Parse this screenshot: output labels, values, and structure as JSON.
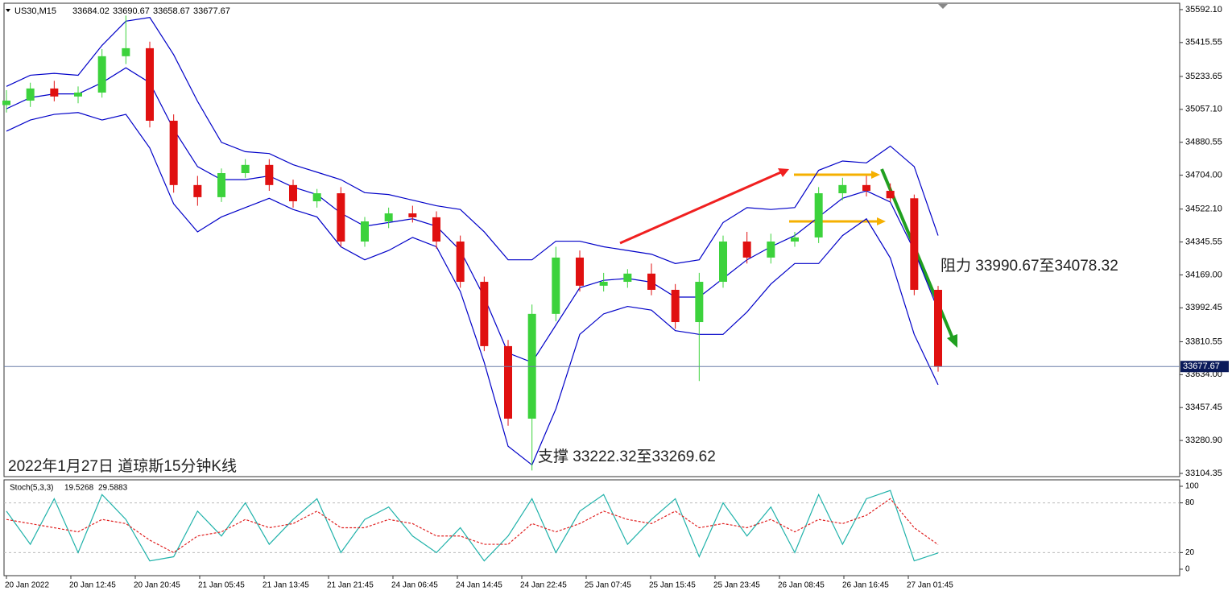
{
  "chart_data": [
    {
      "type": "candlestick",
      "symbol": "US30,M15",
      "ohlc_header": [
        33684.02,
        33690.67,
        33658.67,
        33677.67
      ],
      "caption": "2022年1月27日 道琼斯15分钟K线",
      "annotations": [
        "阻力 33990.67至34078.32",
        "支撑 33222.32至33269.62"
      ],
      "xtick_labels": [
        "20 Jan 2022",
        "20 Jan 12:45",
        "20 Jan 20:45",
        "21 Jan 05:45",
        "21 Jan 13:45",
        "21 Jan 21:45",
        "24 Jan 06:45",
        "24 Jan 14:45",
        "24 Jan 22:45",
        "25 Jan 07:45",
        "25 Jan 15:45",
        "25 Jan 23:45",
        "26 Jan 08:45",
        "26 Jan 16:45",
        "27 Jan 01:45"
      ],
      "open": [
        35080,
        35104,
        35169,
        35126,
        35147,
        35342,
        35385,
        34996,
        34651,
        34586,
        34715,
        34759,
        34651,
        34564,
        34607,
        34348,
        34456,
        34499,
        34478,
        34348,
        34132,
        33787,
        33398,
        33960,
        34262,
        34111,
        34132,
        34176,
        34089,
        33916,
        34132,
        34348,
        34262,
        34348,
        34370,
        34607,
        34651,
        34620,
        34580,
        34089
      ],
      "high": [
        35160,
        35200,
        35210,
        35180,
        35380,
        35560,
        35420,
        35030,
        34700,
        34740,
        34790,
        34790,
        34680,
        34630,
        34640,
        34480,
        34530,
        34540,
        34510,
        34380,
        34160,
        33820,
        34010,
        34320,
        34300,
        34180,
        34200,
        34230,
        34120,
        34180,
        34380,
        34400,
        34390,
        34400,
        34640,
        34690,
        34700,
        34660,
        34600,
        34110
      ],
      "low": [
        35040,
        35070,
        35100,
        35090,
        35120,
        35300,
        34960,
        34610,
        34540,
        34560,
        34690,
        34620,
        34530,
        34530,
        34320,
        34320,
        34420,
        34450,
        34310,
        34100,
        33760,
        33360,
        33120,
        33920,
        34080,
        34080,
        34100,
        34060,
        33880,
        33600,
        34100,
        34230,
        34230,
        34320,
        34340,
        34570,
        34590,
        34560,
        34060,
        33650
      ],
      "close": [
        35104,
        35169,
        35126,
        35147,
        35342,
        35385,
        34996,
        34651,
        34586,
        34715,
        34759,
        34651,
        34564,
        34607,
        34348,
        34456,
        34499,
        34478,
        34348,
        34132,
        33787,
        33398,
        33960,
        34262,
        34111,
        34132,
        34176,
        34089,
        33916,
        34132,
        34348,
        34262,
        34348,
        34370,
        34607,
        34651,
        34620,
        34580,
        34089,
        33677.67
      ],
      "up_color": "#3cd23c",
      "down_color": "#e01010",
      "bands": [
        {
          "name": "upper",
          "color": "#0000c8",
          "values": [
            35180,
            35240,
            35250,
            35240,
            35400,
            35530,
            35550,
            35350,
            35100,
            34880,
            34830,
            34820,
            34760,
            34720,
            34680,
            34610,
            34600,
            34570,
            34540,
            34520,
            34400,
            34250,
            34250,
            34350,
            34350,
            34320,
            34300,
            34280,
            34230,
            34250,
            34450,
            34530,
            34520,
            34530,
            34730,
            34780,
            34770,
            34860,
            34750,
            34380
          ]
        },
        {
          "name": "middle",
          "color": "#0000c8",
          "values": [
            35060,
            35120,
            35140,
            35140,
            35200,
            35280,
            35200,
            34950,
            34750,
            34680,
            34680,
            34700,
            34640,
            34600,
            34500,
            34430,
            34450,
            34470,
            34430,
            34300,
            34050,
            33750,
            33700,
            33900,
            34100,
            34140,
            34150,
            34130,
            34050,
            34050,
            34150,
            34250,
            34320,
            34380,
            34480,
            34580,
            34620,
            34560,
            34300,
            33980
          ]
        },
        {
          "name": "lower",
          "color": "#0000c8",
          "values": [
            34940,
            35000,
            35030,
            35040,
            35000,
            35030,
            34850,
            34550,
            34400,
            34480,
            34530,
            34580,
            34520,
            34480,
            34320,
            34250,
            34300,
            34370,
            34320,
            34080,
            33700,
            33250,
            33150,
            33450,
            33850,
            33960,
            34000,
            33980,
            33870,
            33850,
            33850,
            33970,
            34120,
            34230,
            34230,
            34380,
            34470,
            34260,
            33850,
            33580
          ]
        }
      ],
      "ylim": [
        33087,
        35622
      ],
      "yticks": [
        {
          "value": 35592.1,
          "label": "35592.10"
        },
        35415.55,
        35233.65,
        {
          "value": 35057.1,
          "label": "35057.10"
        },
        34880.55,
        {
          "value": 34704.0,
          "label": "34704.00"
        },
        {
          "value": 34522.1,
          "label": "34522.10"
        },
        34345.55,
        {
          "value": 34169.0,
          "label": "34169.00"
        },
        33992.45,
        33810.55,
        {
          "value": 33634.0,
          "label": "33634.00"
        },
        33457.45,
        {
          "value": 33280.9,
          "label": "33280.90"
        },
        33104.35
      ]
    },
    {
      "type": "line",
      "name": "Stoch(5,3,3)",
      "series": [
        {
          "name": "main",
          "color": "#20b2aa",
          "dash": false,
          "values": [
            70,
            30,
            85,
            20,
            90,
            60,
            10,
            15,
            70,
            40,
            80,
            30,
            60,
            85,
            20,
            60,
            75,
            40,
            20,
            50,
            10,
            40,
            85,
            20,
            70,
            90,
            30,
            60,
            85,
            15,
            80,
            40,
            75,
            20,
            90,
            30,
            85,
            95,
            10,
            19.5268
          ]
        },
        {
          "name": "signal",
          "color": "#e02020",
          "dash": true,
          "values": [
            60,
            55,
            50,
            45,
            60,
            55,
            35,
            20,
            40,
            45,
            60,
            50,
            55,
            70,
            50,
            50,
            60,
            55,
            40,
            40,
            30,
            30,
            55,
            45,
            55,
            70,
            60,
            55,
            70,
            50,
            55,
            50,
            60,
            45,
            60,
            55,
            65,
            85,
            50,
            29.5883
          ]
        }
      ],
      "ylim": [
        -7.8,
        106.8
      ],
      "yticks": [
        100,
        80,
        20,
        0
      ],
      "levels": [
        80,
        20
      ]
    }
  ]
}
